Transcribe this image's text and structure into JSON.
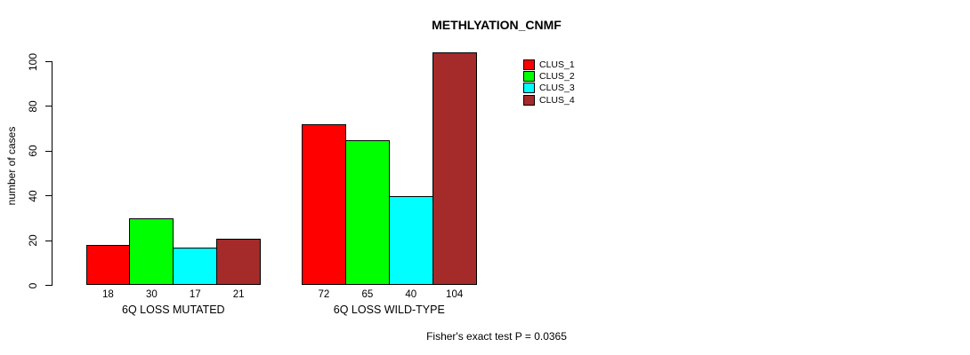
{
  "chart": {
    "title": "METHLYATION_CNMF",
    "ylabel": "number of cases",
    "footer": "Fisher's exact test P = 0.0365"
  },
  "chart_data": {
    "type": "bar",
    "title": "METHLYATION_CNMF",
    "xlabel": "",
    "ylabel": "number of cases",
    "categories": [
      "6Q LOSS MUTATED",
      "6Q LOSS WILD-TYPE"
    ],
    "series": [
      {
        "name": "CLUS_1",
        "color": "#ff0000",
        "values": [
          18,
          72
        ]
      },
      {
        "name": "CLUS_2",
        "color": "#00ff00",
        "values": [
          30,
          65
        ]
      },
      {
        "name": "CLUS_3",
        "color": "#00ffff",
        "values": [
          17,
          40
        ]
      },
      {
        "name": "CLUS_4",
        "color": "#a52a2a",
        "values": [
          21,
          104
        ]
      }
    ],
    "bar_value_labels": [
      [
        18,
        30,
        17,
        21
      ],
      [
        72,
        65,
        40,
        104
      ]
    ],
    "yticks": [
      0,
      20,
      40,
      60,
      80,
      100
    ],
    "ylim": [
      0,
      104
    ],
    "grid": false,
    "legend": {
      "position": "top-right",
      "entries": [
        "CLUS_1",
        "CLUS_2",
        "CLUS_3",
        "CLUS_4"
      ]
    },
    "bar_border_color": "#000000",
    "axis_color": "#000000",
    "annotation": "Fisher's exact test P = 0.0365"
  }
}
